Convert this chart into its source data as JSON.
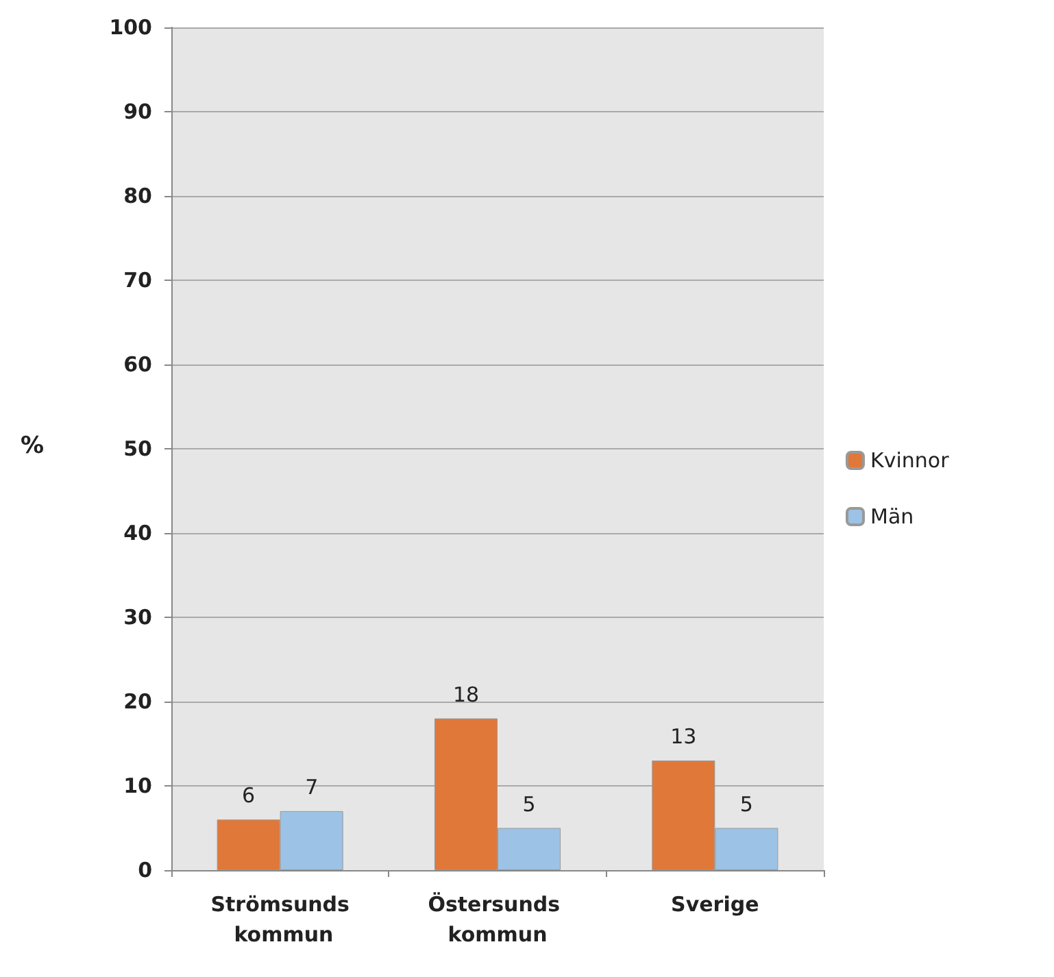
{
  "chart_data": {
    "type": "bar",
    "ylabel": "%",
    "categories": [
      "Strömsunds kommun",
      "Östersunds kommun",
      "Sverige"
    ],
    "series": [
      {
        "name": "Kvinnor",
        "color": "#e0783a",
        "values": [
          6,
          18,
          13
        ]
      },
      {
        "name": "Män",
        "color": "#9cc3e5",
        "values": [
          7,
          5,
          5
        ]
      }
    ],
    "ylim": [
      0,
      100
    ],
    "yticks": [
      0,
      10,
      20,
      30,
      40,
      50,
      60,
      70,
      80,
      90,
      100
    ],
    "grid": "y",
    "legend": "right",
    "data_labels": true
  }
}
